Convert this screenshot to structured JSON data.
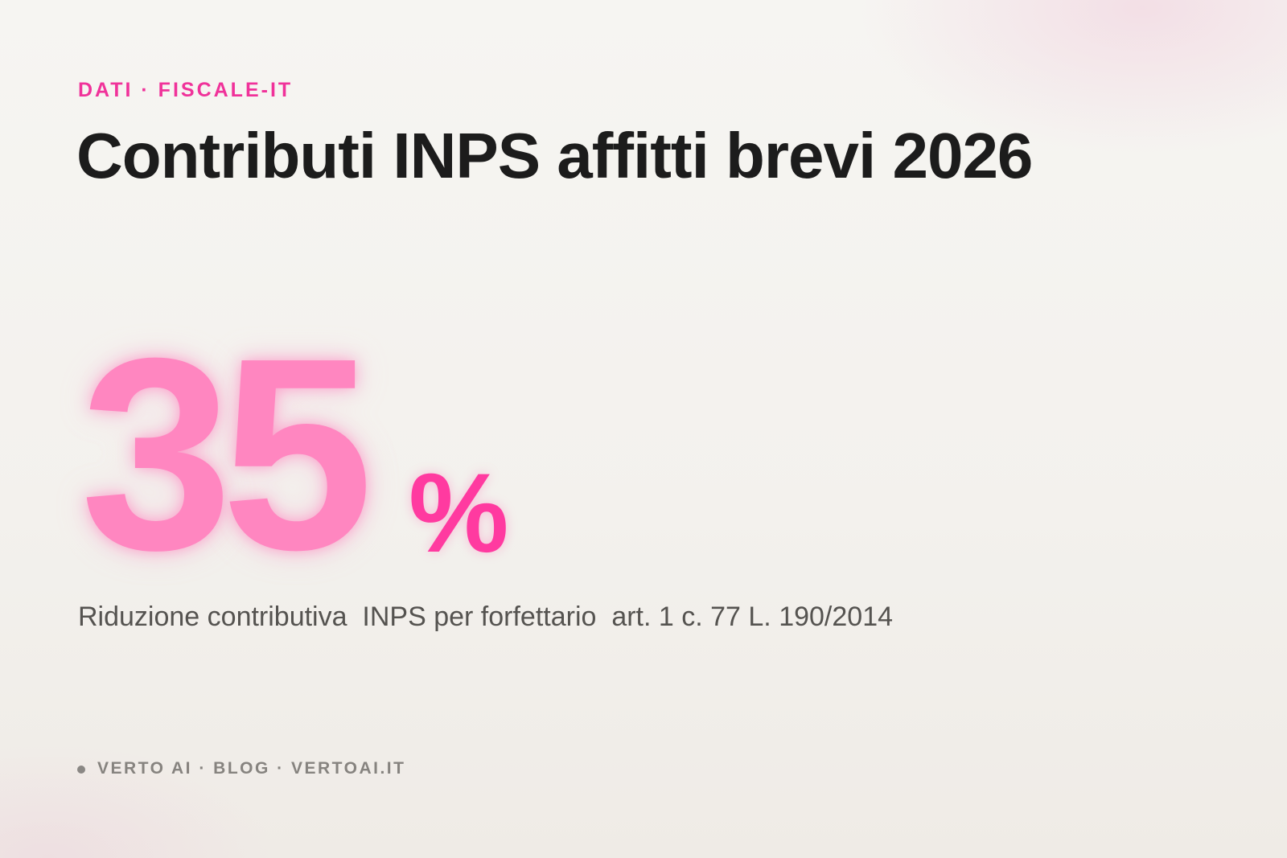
{
  "header": {
    "eyebrow": "DATI · FISCALE-IT",
    "title": "Contributi INPS affitti brevi 2026"
  },
  "stat": {
    "value": 35,
    "unit": "%",
    "caption": "Riduzione contributiva  INPS per forfettario  art. 1 c. 77 L. 190/2014"
  },
  "footer": {
    "text": "VERTO AI · BLOG · VERTOAI.IT"
  }
}
